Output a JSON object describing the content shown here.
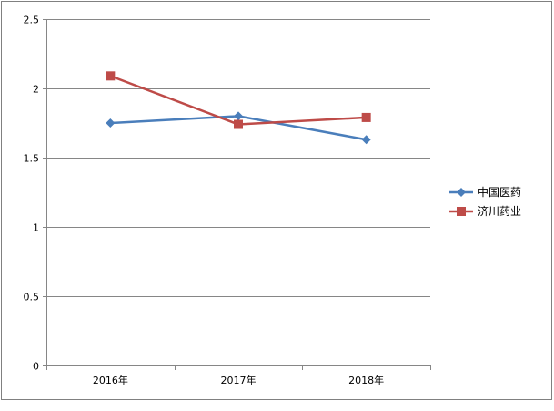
{
  "chart_data": {
    "type": "line",
    "categories": [
      "2016年",
      "2017年",
      "2018年"
    ],
    "series": [
      {
        "name": "中国医药",
        "values": [
          1.75,
          1.8,
          1.63
        ],
        "color": "#4a7ebb",
        "marker": "diamond"
      },
      {
        "name": "济川药业",
        "values": [
          2.09,
          1.74,
          1.79
        ],
        "color": "#be4b48",
        "marker": "square"
      }
    ],
    "ylim": [
      0,
      2.5
    ],
    "yticks": [
      0,
      0.5,
      1,
      1.5,
      2,
      2.5
    ],
    "ytick_labels": [
      "0",
      "0.5",
      "1",
      "1.5",
      "2",
      "2.5"
    ],
    "grid": true,
    "legend_position": "right"
  }
}
